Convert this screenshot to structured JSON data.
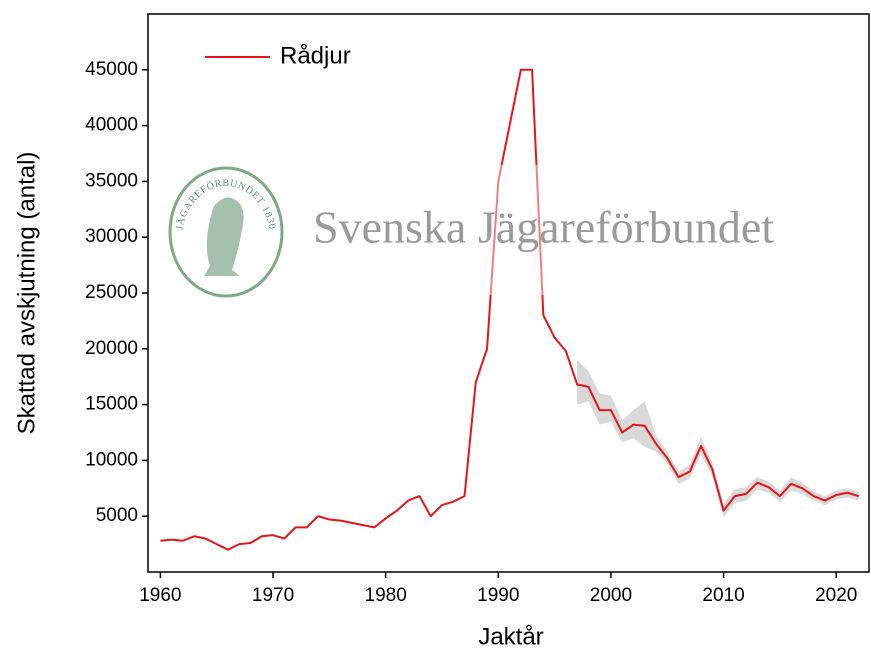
{
  "chart_data": {
    "type": "line",
    "xlabel": "Jaktår",
    "ylabel": "Skattad avskjutning (antal)",
    "watermark": "Svenska Jägareförbundet",
    "logo_text": "JÄGAREFÖRBUNDET 1830",
    "x": [
      1960,
      1961,
      1962,
      1963,
      1964,
      1965,
      1966,
      1967,
      1968,
      1969,
      1970,
      1971,
      1972,
      1973,
      1974,
      1975,
      1976,
      1977,
      1978,
      1979,
      1980,
      1981,
      1982,
      1983,
      1984,
      1985,
      1986,
      1987,
      1988,
      1989,
      1990,
      1991,
      1992,
      1993,
      1994,
      1995,
      1996,
      1997,
      1998,
      1999,
      2000,
      2001,
      2002,
      2003,
      2004,
      2005,
      2006,
      2007,
      2008,
      2009,
      2010,
      2011,
      2012,
      2013,
      2014,
      2015,
      2016,
      2017,
      2018,
      2019,
      2020,
      2021,
      2022
    ],
    "series": [
      {
        "name": "Rådjur",
        "color": "#e3161b",
        "band_color": "#d9d9d9",
        "values": [
          2800,
          2900,
          2800,
          3200,
          3000,
          2500,
          2000,
          2500,
          2600,
          3200,
          3300,
          3000,
          4000,
          4000,
          5000,
          4700,
          4600,
          4400,
          4200,
          4000,
          4800,
          5500,
          6400,
          6800,
          5000,
          6000,
          6300,
          6800,
          17000,
          20000,
          35000,
          40000,
          45000,
          45000,
          23000,
          21000,
          19800,
          16800,
          16600,
          14500,
          14500,
          12500,
          13200,
          13100,
          11500,
          10200,
          8500,
          9000,
          11300,
          9200,
          5500,
          6800,
          7000,
          8000,
          7600,
          6800,
          7900,
          7500,
          6800,
          6400,
          6900,
          7100,
          6800
        ],
        "upper": [
          null,
          null,
          null,
          null,
          null,
          null,
          null,
          null,
          null,
          null,
          null,
          null,
          null,
          null,
          null,
          null,
          null,
          null,
          null,
          null,
          null,
          null,
          null,
          null,
          null,
          null,
          null,
          null,
          null,
          null,
          null,
          null,
          null,
          null,
          null,
          null,
          null,
          19000,
          18000,
          16000,
          15800,
          13600,
          14500,
          15300,
          12200,
          10800,
          9000,
          9600,
          12100,
          9800,
          6100,
          7400,
          7600,
          8500,
          8100,
          7300,
          8500,
          8000,
          7200,
          6800,
          7300,
          7500,
          7200
        ],
        "lower": [
          null,
          null,
          null,
          null,
          null,
          null,
          null,
          null,
          null,
          null,
          null,
          null,
          null,
          null,
          null,
          null,
          null,
          null,
          null,
          null,
          null,
          null,
          null,
          null,
          null,
          null,
          null,
          null,
          null,
          null,
          null,
          null,
          null,
          null,
          null,
          null,
          null,
          15000,
          15300,
          13200,
          13500,
          11600,
          12000,
          11200,
          10800,
          9700,
          7900,
          8400,
          10500,
          8600,
          4900,
          6200,
          6400,
          7400,
          7100,
          6300,
          7300,
          7000,
          6400,
          6000,
          6500,
          6700,
          6400
        ]
      }
    ],
    "xlim": [
      1958.9,
      2023
    ],
    "ylim": [
      0,
      50000
    ],
    "xticks": [
      1960,
      1970,
      1980,
      1990,
      2000,
      2010,
      2020
    ],
    "yticks": [
      5000,
      10000,
      15000,
      20000,
      25000,
      30000,
      35000,
      40000,
      45000
    ],
    "legend": "upper left",
    "grid": false
  }
}
